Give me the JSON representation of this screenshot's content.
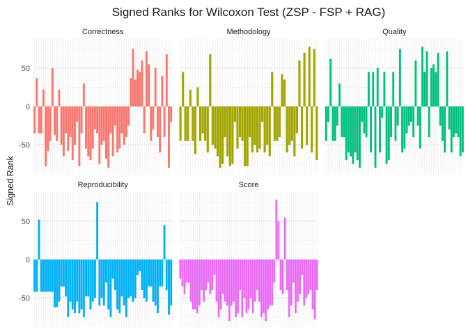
{
  "chart_data": {
    "type": "bar",
    "title": "Signed Ranks for Wilcoxon Test (ZSP - FSP + RAG)",
    "ylabel": "Signed Rank",
    "xlabel": "",
    "ylim": [
      -88,
      88
    ],
    "yticks": [
      -50,
      0,
      50
    ],
    "grid": true,
    "legend": "none",
    "facets": [
      {
        "name": "Correctness",
        "color": "#F8766D",
        "values": [
          -35,
          37,
          -35,
          -35,
          22,
          -78,
          -58,
          -45,
          50,
          -37,
          -45,
          22,
          -50,
          -65,
          -35,
          -58,
          -40,
          -70,
          -50,
          -20,
          -78,
          -35,
          30,
          -55,
          -65,
          -70,
          -55,
          -30,
          -35,
          -75,
          -50,
          -45,
          -68,
          -80,
          -35,
          -65,
          -25,
          -60,
          -55,
          -35,
          -50,
          -40,
          -25,
          37,
          75,
          35,
          48,
          45,
          60,
          -35,
          72,
          55,
          -45,
          -30,
          50,
          -40,
          -60,
          40,
          -40,
          68,
          -80,
          -20
        ]
      },
      {
        "name": "Methodology",
        "color": "#A3A500",
        "values": [
          -45,
          45,
          -45,
          -45,
          22,
          -45,
          -62,
          25,
          -45,
          -35,
          -45,
          -60,
          68,
          -50,
          -55,
          -65,
          -80,
          -75,
          -40,
          -65,
          -78,
          -75,
          -20,
          -55,
          -40,
          -45,
          -78,
          -78,
          -40,
          -60,
          -50,
          -60,
          -55,
          -20,
          -60,
          -50,
          -65,
          45,
          -45,
          -45,
          -40,
          42,
          35,
          -60,
          -50,
          -45,
          -65,
          -35,
          60,
          -55,
          70,
          -50,
          78,
          -60,
          75,
          -70
        ]
      },
      {
        "name": "Quality",
        "color": "#00BF7D",
        "values": [
          -45,
          -20,
          62,
          -45,
          -45,
          -25,
          30,
          -40,
          -40,
          -70,
          -60,
          -65,
          -75,
          -60,
          -70,
          -80,
          -20,
          -35,
          -40,
          45,
          -60,
          45,
          -80,
          50,
          -60,
          -15,
          45,
          -75,
          -70,
          -40,
          45,
          -45,
          -25,
          75,
          -60,
          -55,
          -35,
          -25,
          -20,
          -40,
          60,
          -25,
          -55,
          78,
          45,
          72,
          -40,
          50,
          55,
          45,
          70,
          -25,
          -45,
          -60,
          72,
          -30,
          -60,
          -40,
          -35,
          -40,
          -65,
          -60
        ]
      },
      {
        "name": "Reproducibility",
        "color": "#00B0F6",
        "values": [
          -42,
          -42,
          52,
          -42,
          -42,
          -42,
          -42,
          -42,
          -42,
          -62,
          -62,
          -55,
          -35,
          -35,
          -48,
          -75,
          -55,
          -65,
          -70,
          -55,
          -70,
          -65,
          -75,
          -48,
          -48,
          -65,
          -55,
          -50,
          75,
          -60,
          -50,
          -60,
          -30,
          -65,
          -75,
          -25,
          -40,
          -65,
          -70,
          -48,
          -60,
          -75,
          -50,
          -48,
          -55,
          -50,
          -20,
          -15,
          -40,
          -50,
          -55,
          -35,
          -35,
          -55,
          -60,
          -70,
          -35,
          -35,
          45,
          -40,
          -72,
          -60
        ]
      },
      {
        "name": "Score",
        "color": "#E76BF3",
        "values": [
          -25,
          -35,
          -45,
          -30,
          -30,
          -55,
          -65,
          -65,
          -70,
          -60,
          -40,
          -55,
          -40,
          -30,
          -45,
          -40,
          -20,
          -55,
          -75,
          -65,
          -45,
          -55,
          -60,
          -80,
          -60,
          -55,
          -75,
          -70,
          -40,
          -75,
          -50,
          -70,
          -65,
          -50,
          -70,
          -55,
          -40,
          -55,
          -75,
          -70,
          -80,
          -65,
          -60,
          -60,
          -30,
          78,
          50,
          -40,
          -45,
          55,
          -40,
          -75,
          -60,
          -30,
          -70,
          -55,
          -45,
          -20,
          -60,
          -50,
          -45,
          -40,
          -65,
          -78,
          -40
        ]
      }
    ]
  }
}
